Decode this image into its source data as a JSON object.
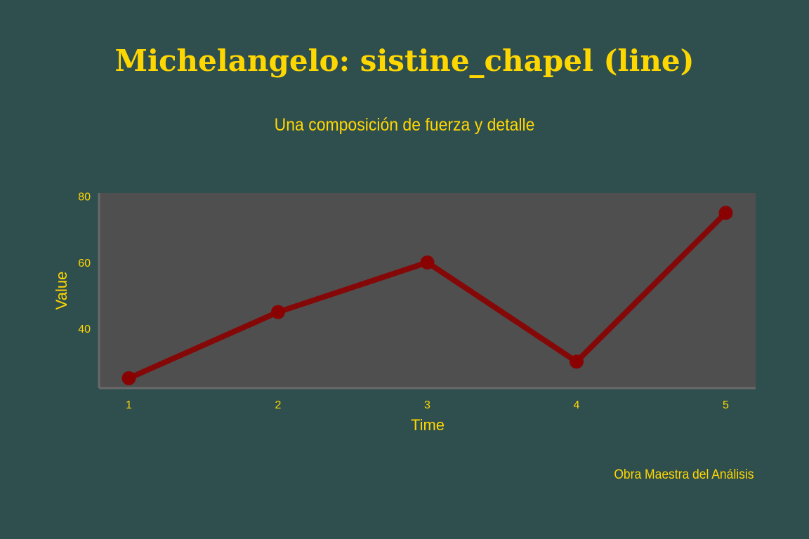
{
  "chart_data": {
    "type": "line",
    "title": "Michelangelo: sistine_chapel (line)",
    "subtitle": "Una composición de fuerza y detalle",
    "xlabel": "Time",
    "ylabel": "Value",
    "footer": "Obra Maestra del Análisis",
    "x": [
      1,
      2,
      3,
      4,
      5
    ],
    "x_ticks": [
      "1",
      "2",
      "3",
      "4",
      "5"
    ],
    "y_ticks": [
      "40",
      "60",
      "80"
    ],
    "ylim": [
      22,
      81
    ],
    "xlim": [
      0.8,
      5.2
    ],
    "series": [
      {
        "values": [
          25,
          45,
          60,
          30,
          75
        ]
      }
    ],
    "grid": false,
    "legend": "none",
    "colors": {
      "background": "#2f4f4f",
      "plot_background": "#4f4f4f",
      "line": "#8b0000",
      "text": "#ffd700",
      "axis": "#696969"
    }
  }
}
